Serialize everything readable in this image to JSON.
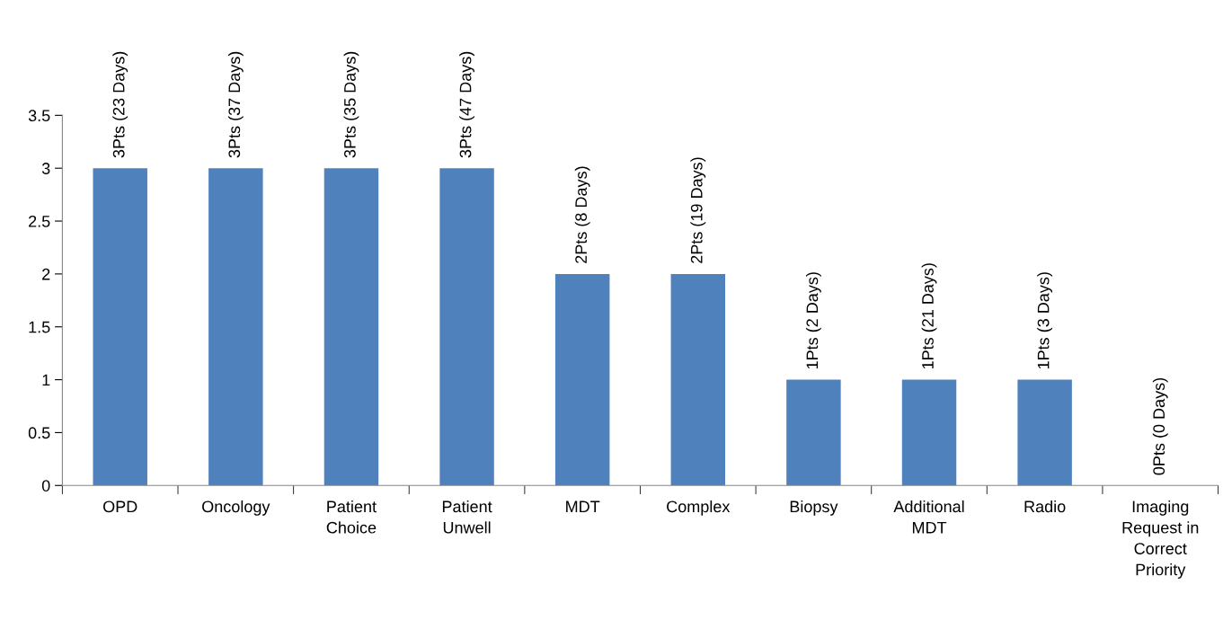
{
  "chart_data": {
    "type": "bar",
    "categories": [
      "OPD",
      "Oncology",
      "Patient\nChoice",
      "Patient\nUnwell",
      "MDT",
      "Complex",
      "Biopsy",
      "Additional\nMDT",
      "Radio",
      "Imaging\nRequest in\nCorrect\nPriority"
    ],
    "values": [
      3,
      3,
      3,
      3,
      2,
      2,
      1,
      1,
      1,
      0
    ],
    "value_labels": [
      "3Pts (23 Days)",
      "3Pts (37 Days)",
      "3Pts (35 Days)",
      "3Pts (47 Days)",
      "2Pts (8 Days)",
      "2Pts (19 Days)",
      "1Pts (2 Days)",
      "1Pts (21 Days)",
      "1Pts (3 Days)",
      "0Pts (0 Days)"
    ],
    "color": "#4f81bd",
    "ylim": [
      0,
      3.5
    ],
    "yticks": [
      0,
      0.5,
      1,
      1.5,
      2,
      2.5,
      3,
      3.5
    ],
    "grid": false,
    "legend": false
  }
}
